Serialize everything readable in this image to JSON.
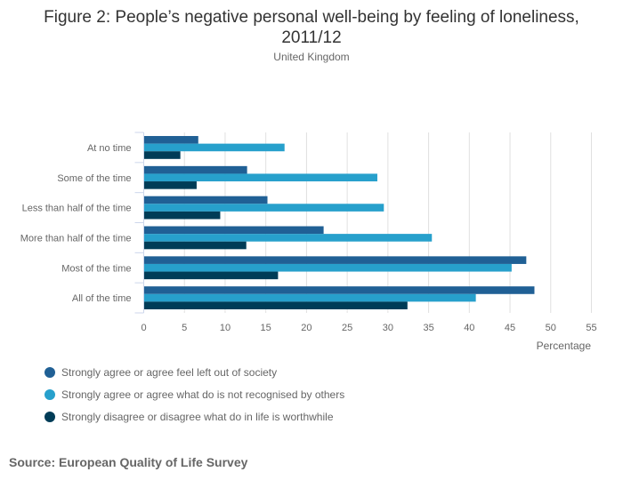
{
  "chart_data": {
    "type": "bar",
    "orientation": "horizontal",
    "title": "Figure 2: People’s negative personal well-being by feeling of loneliness, 2011/12",
    "title_line1": "Figure 2: People’s negative personal well-being by feeling of loneliness,",
    "title_line2": "2011/12",
    "subtitle": "United Kingdom",
    "xlabel": "Percentage",
    "ylabel": "",
    "xlim": [
      0,
      55
    ],
    "x_ticks": [
      0,
      5,
      10,
      15,
      20,
      25,
      30,
      35,
      40,
      45,
      50,
      55
    ],
    "grid": true,
    "legend_position": "bottom-left",
    "categories": [
      "At no time",
      "Some of the time",
      "Less than half of the time",
      "More than half of the time",
      "Most of the time",
      "All of the time"
    ],
    "series": [
      {
        "name": "Strongly agree or agree feel left out of society",
        "color": "#206095",
        "values": [
          6.7,
          12.7,
          15.2,
          22.1,
          47.0,
          48.0
        ]
      },
      {
        "name": "Strongly agree or agree what do is not recognised by others",
        "color": "#27a0cc",
        "values": [
          17.3,
          28.7,
          29.5,
          35.4,
          45.2,
          40.8
        ]
      },
      {
        "name": "Strongly disagree or disagree what do in life is worthwhile",
        "color": "#003c57",
        "values": [
          4.5,
          6.5,
          9.4,
          12.6,
          16.5,
          32.4
        ]
      }
    ],
    "source": "Source: European Quality of Life Survey"
  }
}
